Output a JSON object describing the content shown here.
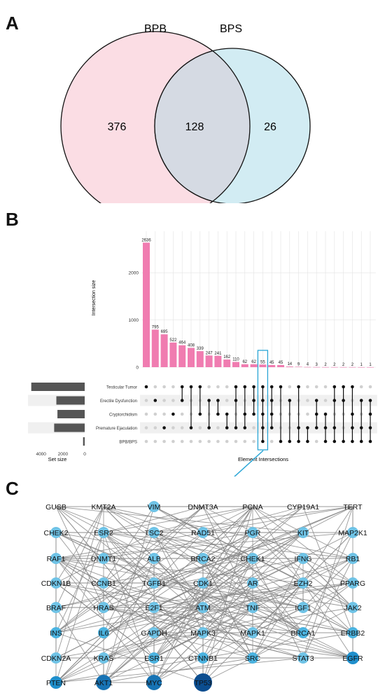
{
  "panels": {
    "a": "A",
    "b": "B",
    "c": "C"
  },
  "venn": {
    "left_label": "BPB",
    "right_label": "BPS",
    "left_only": "376",
    "overlap": "128",
    "right_only": "26",
    "left_color": "#fbdde4",
    "right_color": "#d2ecf3",
    "overlap_color": "#d5dae3"
  },
  "chart_data": [
    {
      "type": "venn",
      "sets": [
        "BPB",
        "BPS"
      ],
      "values": {
        "BPB_only": 376,
        "both": 128,
        "BPS_only": 26
      }
    },
    {
      "type": "bar",
      "ylabel": "Intersection size",
      "ylim": [
        0,
        2700
      ],
      "yticks": [
        0,
        1000,
        2000
      ],
      "values": [
        2636,
        795,
        695,
        522,
        464,
        408,
        339,
        247,
        241,
        162,
        110,
        62,
        62,
        55,
        45,
        45,
        14,
        9,
        4,
        3,
        2,
        2,
        2,
        2,
        1,
        1
      ],
      "value_labels": [
        "2636",
        "795",
        "695",
        "522",
        "464",
        "408",
        "339",
        "247",
        "241",
        "162",
        "110",
        "62",
        "62",
        "55",
        "45",
        "45",
        "14",
        "9",
        "4",
        "3",
        "2",
        "2",
        "2",
        "2",
        "1",
        "1"
      ],
      "bar_color": "#f07cb0",
      "highlight_index": 13,
      "highlight_color": "#2aa6d6",
      "sets": [
        "Testicular Tumor",
        "Erectile Dysfunction",
        "Cryptorchidism",
        "Premature Ejaculation",
        "BPB/BPS"
      ],
      "set_sizes": [
        4900,
        2600,
        2500,
        2800,
        150
      ],
      "set_size_label": "Set size",
      "set_size_ticks": [
        "4000",
        "2000",
        "0"
      ],
      "xlabel": "Element Intersections",
      "matrix": [
        [
          0
        ],
        [
          1
        ],
        [
          3
        ],
        [
          2
        ],
        [
          0,
          1
        ],
        [
          0,
          3
        ],
        [
          0,
          2
        ],
        [
          1,
          3
        ],
        [
          1,
          2
        ],
        [
          2,
          3
        ],
        [
          0,
          1,
          3
        ],
        [
          0,
          2,
          3
        ],
        [
          0,
          1,
          2
        ],
        [
          0,
          1,
          2,
          3,
          4
        ],
        [
          0,
          1,
          2,
          3
        ],
        [
          0,
          4
        ],
        [
          1,
          4
        ],
        [
          0,
          3,
          4
        ],
        [
          3,
          4
        ],
        [
          1,
          2,
          3
        ],
        [
          2,
          3,
          4
        ],
        [
          0,
          1,
          3,
          4
        ],
        [
          0,
          1,
          4
        ],
        [
          0,
          2,
          3,
          4
        ],
        [
          1,
          3,
          4
        ],
        [
          1,
          2,
          3,
          4
        ]
      ]
    },
    {
      "type": "network",
      "nodes": [
        [
          "GUSB",
          "KMT2A",
          "VIM",
          "DNMT3A",
          "PCNA",
          "CYP19A1",
          "TERT"
        ],
        [
          "CHEK2",
          "ESR2",
          "TSC2",
          "RAD51",
          "PGR",
          "KIT",
          "MAP2K1"
        ],
        [
          "RAF1",
          "DNMT1",
          "ALB",
          "BRCA2",
          "CHEK1",
          "IFNG",
          "RB1"
        ],
        [
          "CDKN1B",
          "CCNB1",
          "TGFB1",
          "CDK1",
          "AR",
          "EZH2",
          "PPARG"
        ],
        [
          "BRAF",
          "HRAS",
          "E2F1",
          "ATM",
          "TNF",
          "IGF1",
          "JAK2"
        ],
        [
          "INS",
          "IL6",
          "GAPDH",
          "MAPK3",
          "MAPK1",
          "BRCA1",
          "ERBB2"
        ],
        [
          "CDKN2A",
          "KRAS",
          "ESR1",
          "CTNNB1",
          "SRC",
          "STAT3",
          "EGFR"
        ],
        [
          "PTEN",
          "AKT1",
          "MYC",
          "TP53"
        ]
      ],
      "node_degree_level": [
        [
          0,
          0,
          1,
          0,
          0,
          0,
          0
        ],
        [
          1,
          1,
          1,
          1,
          1,
          1,
          1
        ],
        [
          1,
          1,
          1,
          1,
          1,
          1,
          1
        ],
        [
          1,
          1,
          1,
          1,
          1,
          1,
          1
        ],
        [
          1,
          1,
          1,
          1,
          1,
          1,
          1
        ],
        [
          2,
          2,
          1,
          1,
          1,
          2,
          2
        ],
        [
          1,
          1,
          2,
          2,
          2,
          1,
          3
        ],
        [
          3,
          4,
          4,
          5
        ]
      ],
      "edge_color": "#888888"
    }
  ],
  "upset_axis": {
    "ylabel": "Intersection size",
    "xlabel": "Element Intersections",
    "setsize": "Set size"
  }
}
